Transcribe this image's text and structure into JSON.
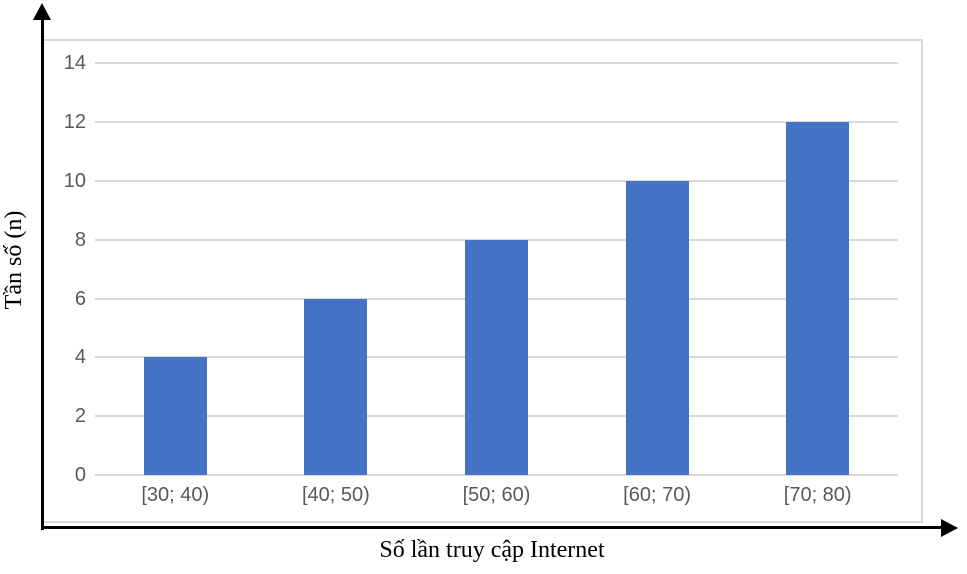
{
  "chart_data": {
    "type": "bar",
    "categories": [
      "[30; 40)",
      "[40; 50)",
      "[50; 60)",
      "[60; 70)",
      "[70; 80)"
    ],
    "values": [
      4,
      6,
      8,
      10,
      12
    ],
    "title": "",
    "xlabel": "Số lần truy cập Internet",
    "ylabel": "Tần số (n)",
    "ylim": [
      0,
      14
    ],
    "yticks": [
      0,
      2,
      4,
      6,
      8,
      10,
      12,
      14
    ],
    "grid": true,
    "legend": false,
    "bar_color": "#4472C4",
    "gridline_color": "#D9D9D9",
    "frame_color": "#D9D9D9",
    "tick_label_color": "#595959",
    "axis_arrow_color": "#000000"
  }
}
